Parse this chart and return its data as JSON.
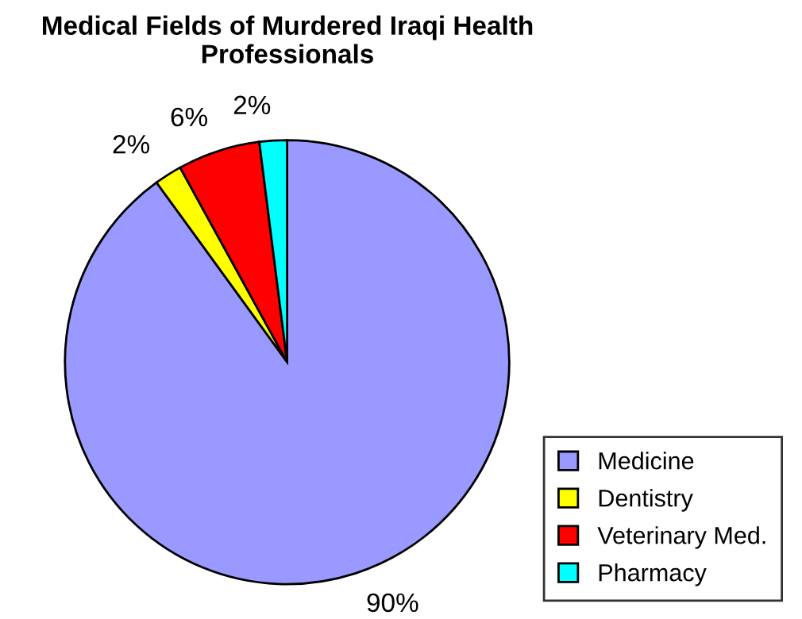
{
  "chart_data": {
    "type": "pie",
    "title": "Medical Fields of Murdered Iraqi Health Professionals",
    "categories": [
      "Medicine",
      "Dentistry",
      "Veterinary Med.",
      "Pharmacy"
    ],
    "values": [
      90,
      2,
      6,
      2
    ],
    "colors": [
      "#9999ff",
      "#ffff00",
      "#ff0000",
      "#00ffff"
    ],
    "value_labels": [
      "90%",
      "2%",
      "6%",
      "2%"
    ],
    "legend": "bottom right"
  }
}
